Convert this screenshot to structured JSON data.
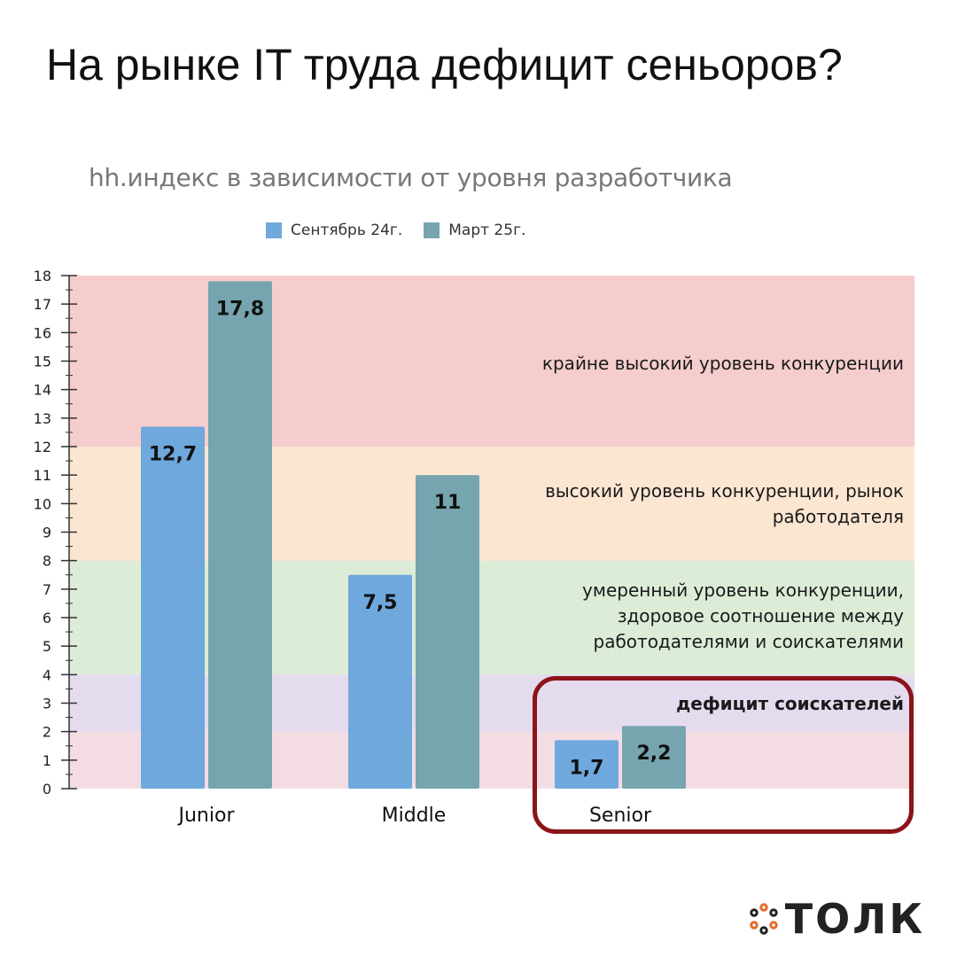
{
  "page": {
    "title": "На рынке IT труда дефицит сеньоров?"
  },
  "chart_data": {
    "type": "bar",
    "title": "hh.индекс в зависимости от уровня разработчика",
    "xlabel": "",
    "ylabel": "",
    "ylim": [
      0,
      18
    ],
    "y_ticks": [
      "0",
      "1",
      "2",
      "3",
      "4",
      "5",
      "6",
      "7",
      "8",
      "9",
      "10",
      "11",
      "12",
      "13",
      "14",
      "15",
      "16",
      "17",
      "18"
    ],
    "categories": [
      "Junior",
      "Middle",
      "Senior"
    ],
    "series": [
      {
        "name": "Сентябрь 24г.",
        "values": [
          12.7,
          7.5,
          1.7
        ],
        "labels": [
          "12,7",
          "7,5",
          "1,7"
        ],
        "color": "#6fa8dc"
      },
      {
        "name": "Март 25г.",
        "values": [
          17.8,
          11,
          2.2
        ],
        "labels": [
          "17,8",
          "11",
          "2,2"
        ],
        "color": "#76a5af"
      }
    ],
    "zones": [
      {
        "from": 0,
        "to": 2,
        "color": "#f3dde3",
        "label": ""
      },
      {
        "from": 2,
        "to": 4,
        "color": "#e5dbef",
        "label": "дефицит соискателей"
      },
      {
        "from": 4,
        "to": 8,
        "color": "#dcecd7",
        "label": "умеренный уровень конкуренции, здоровое соотношение между работодателями и соискателями"
      },
      {
        "from": 8,
        "to": 12,
        "color": "#fbe6d2",
        "label": "высокий уровень конкуренции, рынок работодателя"
      },
      {
        "from": 12,
        "to": 18,
        "color": "#f5cdcd",
        "label": "крайне высокий уровень конкуренции"
      }
    ],
    "highlight": "Senior",
    "legend_position": "top"
  },
  "colors": {
    "highlight_border": "#8b1419",
    "logo_accent": "#e46a2c"
  },
  "logo": {
    "text": "ТОЛК",
    "icon": "ring-of-dots-icon"
  }
}
